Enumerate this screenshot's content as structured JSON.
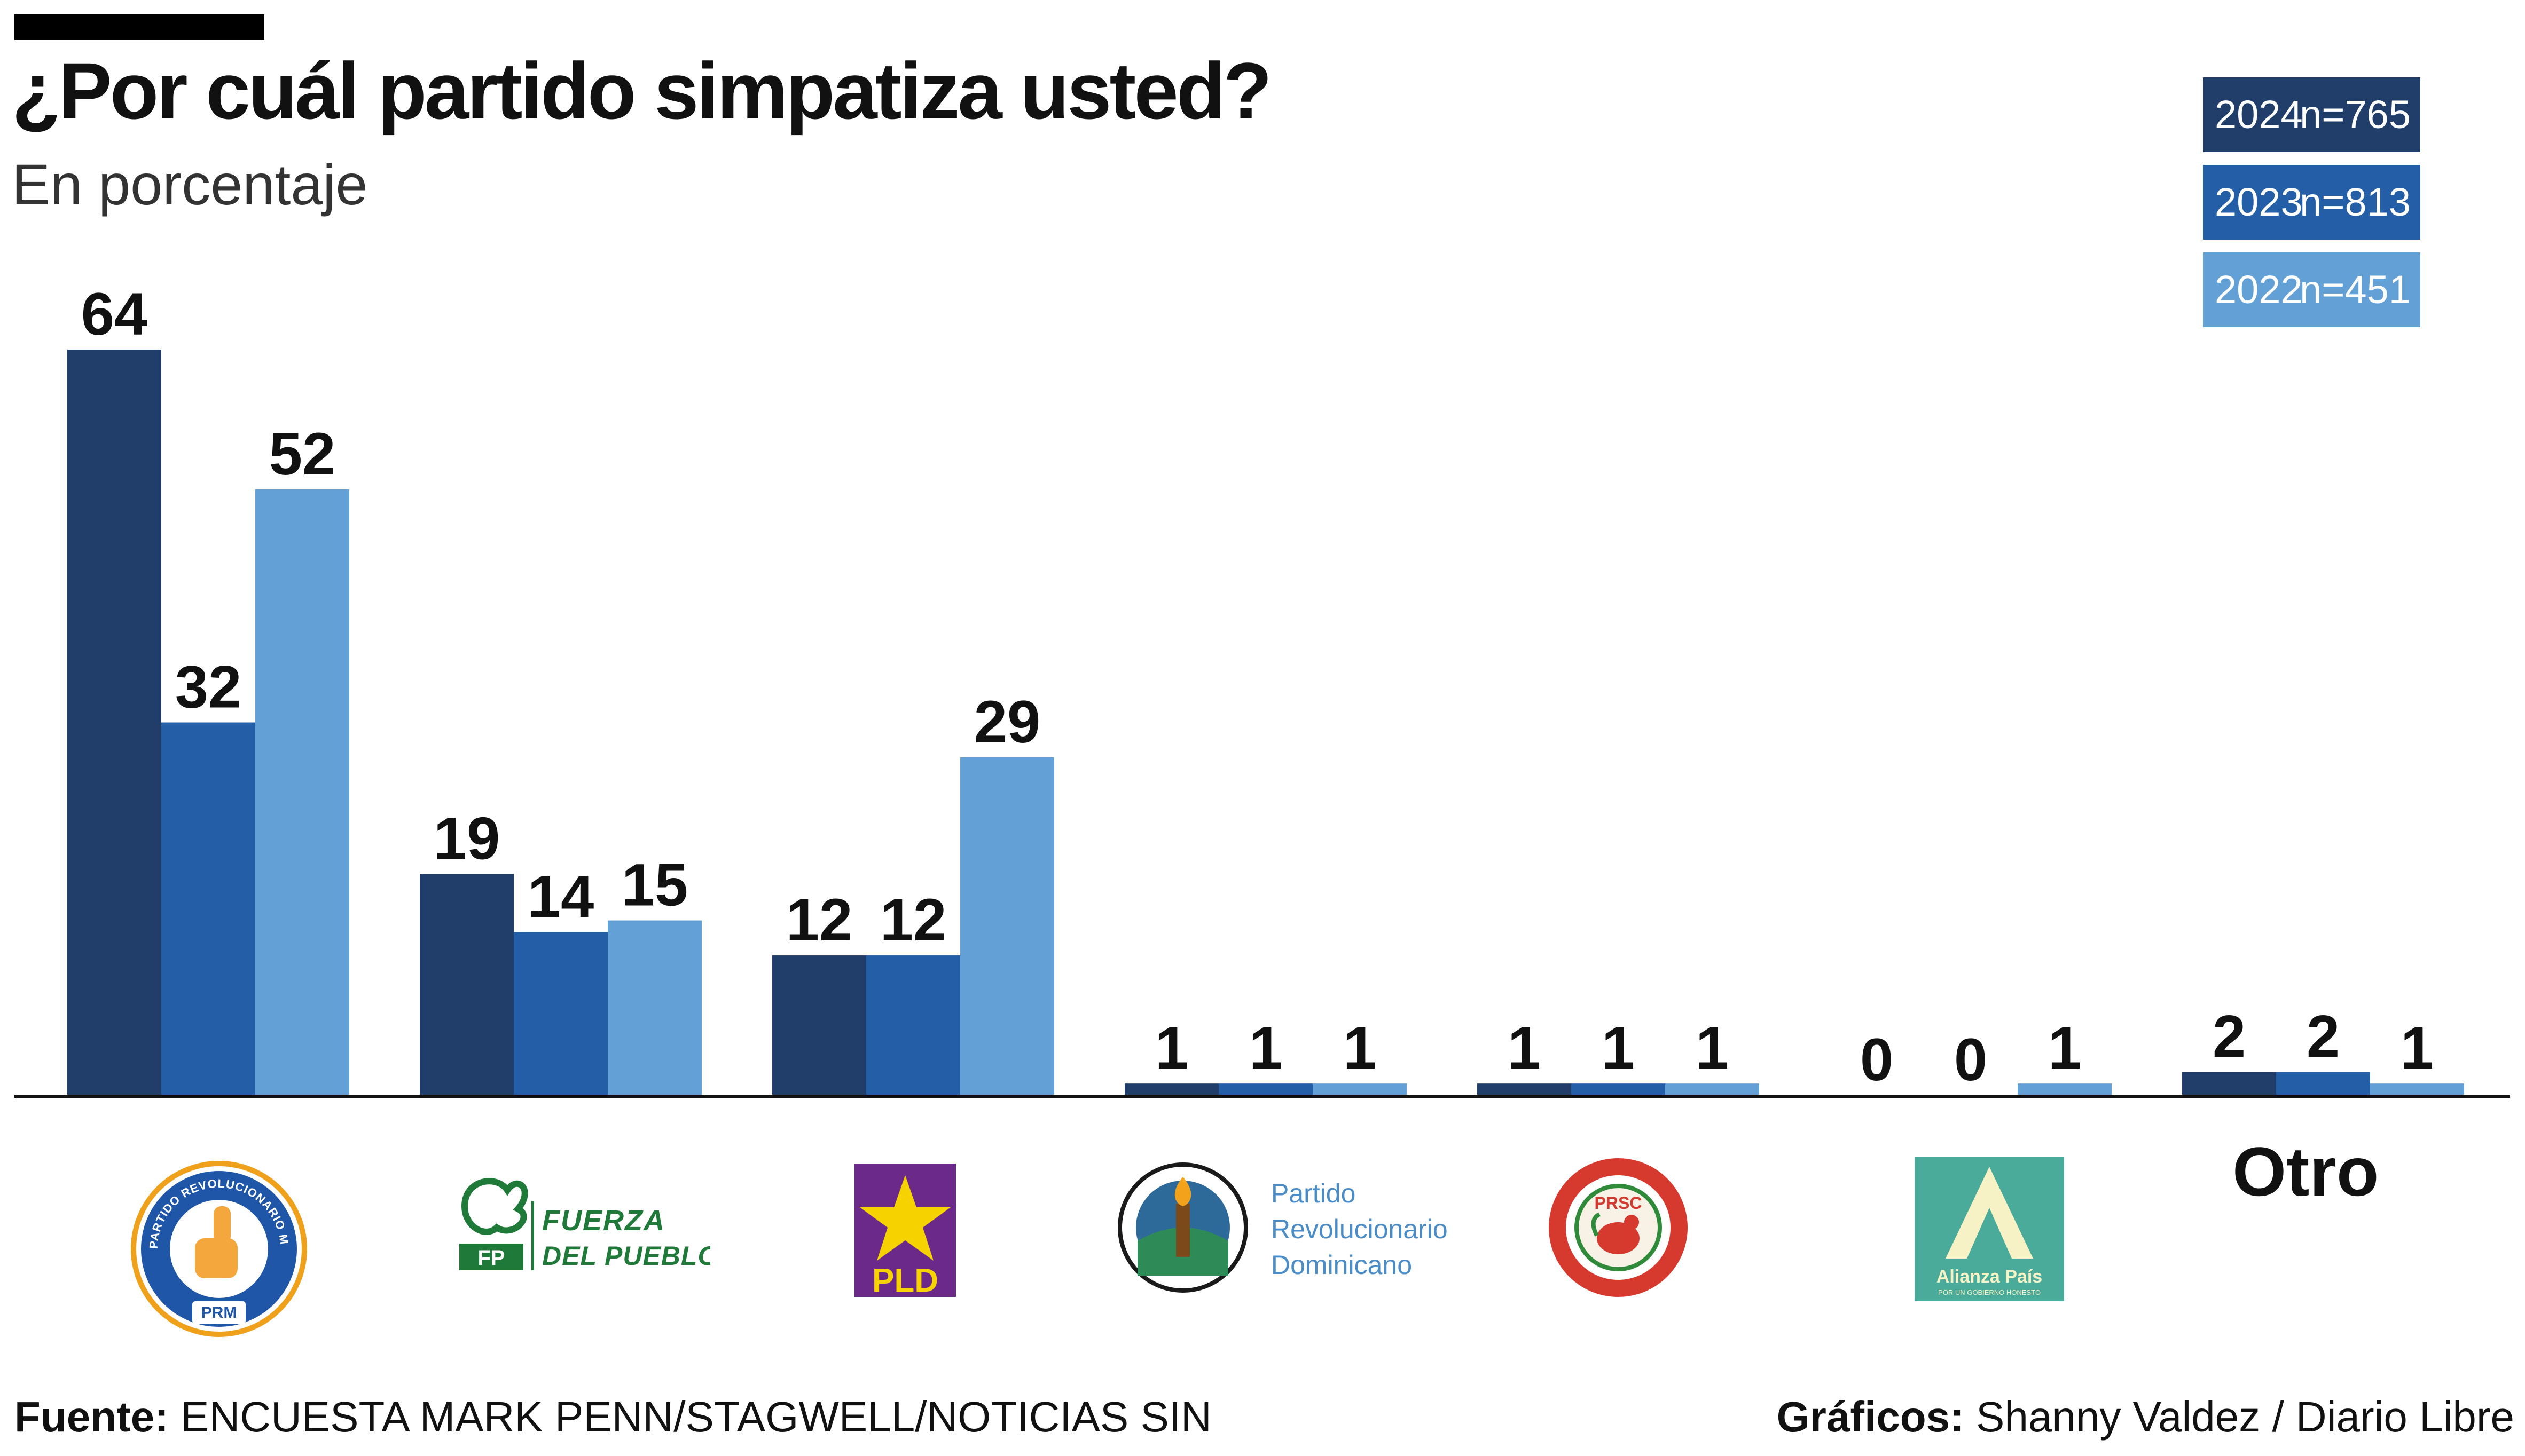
{
  "header": {
    "title": "¿Por cuál partido simpatiza usted?",
    "subtitle": "En porcentaje"
  },
  "legend": [
    {
      "year": "2024",
      "n": "n=765",
      "color": "#213e6b"
    },
    {
      "year": "2023",
      "n": "n=813",
      "color": "#245ea6"
    },
    {
      "year": "2022",
      "n": "n=451",
      "color": "#63a0d6"
    }
  ],
  "chart_data": {
    "type": "bar",
    "title": "¿Por cuál partido simpatiza usted?",
    "subtitle": "En porcentaje",
    "categories": [
      "PRM",
      "FP",
      "PLD",
      "PRD",
      "PRSC",
      "Alianza País",
      "Otro"
    ],
    "series": [
      {
        "name": "2024",
        "values": [
          64,
          19,
          12,
          1,
          1,
          0,
          2
        ],
        "color": "#213e6b"
      },
      {
        "name": "2023",
        "values": [
          32,
          14,
          12,
          1,
          1,
          0,
          2
        ],
        "color": "#245ea6"
      },
      {
        "name": "2022",
        "values": [
          52,
          15,
          29,
          1,
          1,
          1,
          1
        ],
        "color": "#63a0d6"
      }
    ],
    "ylim": [
      0,
      64
    ],
    "grid": false,
    "legend_position": "top-right",
    "data_labels": true
  },
  "logos": {
    "prm_ring_text": "PARTIDO REVOLUCIONARIO MODERNO",
    "prm_abbr": "PRM",
    "fp_line1": "FUERZA",
    "fp_line2": "DEL PUEBLO",
    "fp_abbr": "FP",
    "pld_abbr": "PLD",
    "prd_line1": "Partido",
    "prd_line2": "Revolucionario",
    "prd_line3": "Dominicano",
    "prsc_abbr": "PRSC",
    "alianza_name": "Alianza País",
    "alianza_tagline": "POR UN GOBIERNO HONESTO",
    "otro": "Otro"
  },
  "footer": {
    "source_label": "Fuente:",
    "source_text": " ENCUESTA MARK PENN/STAGWELL/NOTICIAS SIN",
    "credit_label": "Gráficos:",
    "credit_text": " Shanny Valdez / Diario Libre"
  }
}
